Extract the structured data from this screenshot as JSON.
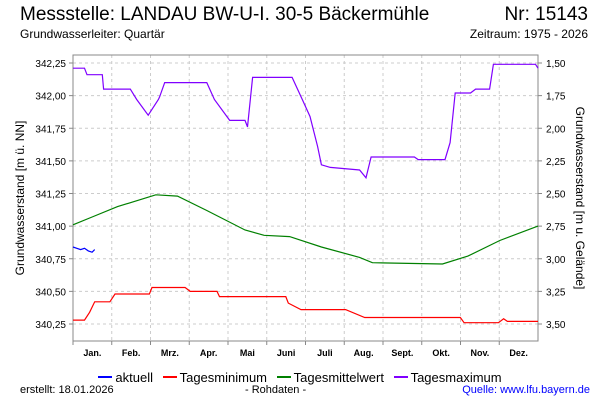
{
  "header": {
    "title": "Messstelle: LANDAU BW-U-I. 30-5 Bäckermühle",
    "nr": "Nr: 15143",
    "aquifer": "Grundwasserleiter: Quartär",
    "period": "Zeitraum: 1975 - 2026"
  },
  "footer": {
    "created": "erstellt:  18.01.2026",
    "raw": "- Rohdaten -",
    "source": "Quelle: www.lfu.bayern.de"
  },
  "chart_data": {
    "type": "line",
    "title": "Messstelle: LANDAU BW-U-I. 30-5 Bäckermühle",
    "ylabel": "Grundwasserstand [m ü. NN]",
    "y2label": "Grundwasserstand [m u. Gelände]",
    "ylim": [
      340.1,
      342.35
    ],
    "ground_level": 343.75,
    "yticks": [
      "340,25",
      "340,50",
      "340,75",
      "341,00",
      "341,25",
      "341,50",
      "341,75",
      "342,00",
      "342,25"
    ],
    "y2ticks": [
      "1,50",
      "1,75",
      "2,00",
      "2,25",
      "2,50",
      "2,75",
      "3,00",
      "3,25",
      "3,50"
    ],
    "x_unit": "day of year",
    "xlim": [
      0,
      365
    ],
    "months": [
      "Jan.",
      "Feb.",
      "Mrz.",
      "Apr.",
      "Mai",
      "Juni",
      "Juli",
      "Aug.",
      "Sept.",
      "Okt.",
      "Nov.",
      "Dez."
    ],
    "grid": true,
    "legend_position": "bottom",
    "series": [
      {
        "name": "aktuell",
        "color": "#0000ff",
        "points": [
          [
            0,
            340.84
          ],
          [
            3,
            340.83
          ],
          [
            6,
            340.82
          ],
          [
            9,
            340.83
          ],
          [
            12,
            340.81
          ],
          [
            15,
            340.8
          ],
          [
            17,
            340.82
          ]
        ]
      },
      {
        "name": "Tagesminimum",
        "color": "#ff0000",
        "points": [
          [
            0,
            340.28
          ],
          [
            9,
            340.28
          ],
          [
            13,
            340.34
          ],
          [
            17,
            340.42
          ],
          [
            29,
            340.42
          ],
          [
            33,
            340.48
          ],
          [
            60,
            340.48
          ],
          [
            62,
            340.53
          ],
          [
            88,
            340.53
          ],
          [
            92,
            340.5
          ],
          [
            113,
            340.5
          ],
          [
            115,
            340.46
          ],
          [
            167,
            340.46
          ],
          [
            169,
            340.41
          ],
          [
            179,
            340.36
          ],
          [
            214,
            340.36
          ],
          [
            229,
            340.3
          ],
          [
            304,
            340.3
          ],
          [
            307,
            340.26
          ],
          [
            334,
            340.26
          ],
          [
            338,
            340.29
          ],
          [
            341,
            340.27
          ],
          [
            365,
            340.27
          ]
        ]
      },
      {
        "name": "Tagesmittelwert",
        "color": "#008000",
        "points": [
          [
            0,
            341.01
          ],
          [
            15,
            341.07
          ],
          [
            35,
            341.15
          ],
          [
            65,
            341.24
          ],
          [
            82,
            341.23
          ],
          [
            105,
            341.12
          ],
          [
            135,
            340.97
          ],
          [
            150,
            340.93
          ],
          [
            170,
            340.92
          ],
          [
            195,
            340.84
          ],
          [
            225,
            340.76
          ],
          [
            235,
            340.72
          ],
          [
            290,
            340.71
          ],
          [
            310,
            340.77
          ],
          [
            335,
            340.89
          ],
          [
            365,
            341.0
          ]
        ]
      },
      {
        "name": "Tagesmaximum",
        "color": "#8000ff",
        "points": [
          [
            0,
            342.21
          ],
          [
            9,
            342.21
          ],
          [
            11,
            342.16
          ],
          [
            23,
            342.16
          ],
          [
            24,
            342.05
          ],
          [
            45,
            342.05
          ],
          [
            50,
            341.97
          ],
          [
            59,
            341.85
          ],
          [
            67,
            341.97
          ],
          [
            68,
            341.99
          ],
          [
            72,
            342.1
          ],
          [
            105,
            342.1
          ],
          [
            111,
            341.97
          ],
          [
            123,
            341.81
          ],
          [
            135,
            341.81
          ],
          [
            137,
            341.76
          ],
          [
            141,
            342.14
          ],
          [
            172,
            342.14
          ],
          [
            180,
            341.97
          ],
          [
            186,
            341.84
          ],
          [
            192,
            341.61
          ],
          [
            195,
            341.47
          ],
          [
            202,
            341.45
          ],
          [
            225,
            341.43
          ],
          [
            230,
            341.37
          ],
          [
            234,
            341.53
          ],
          [
            268,
            341.53
          ],
          [
            271,
            341.51
          ],
          [
            292,
            341.51
          ],
          [
            296,
            341.64
          ],
          [
            300,
            342.02
          ],
          [
            312,
            342.02
          ],
          [
            316,
            342.05
          ],
          [
            327,
            342.05
          ],
          [
            330,
            342.24
          ],
          [
            363,
            342.24
          ],
          [
            365,
            342.21
          ]
        ]
      }
    ]
  }
}
